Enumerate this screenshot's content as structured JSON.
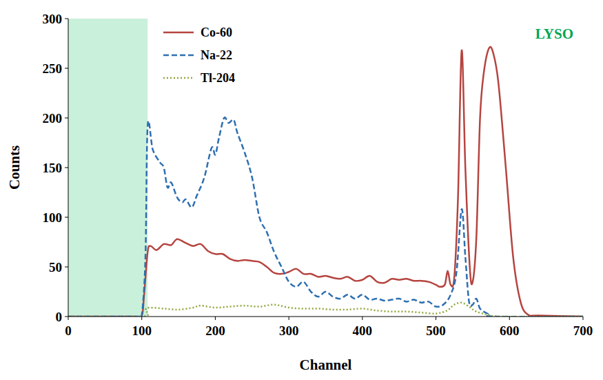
{
  "chart_data": {
    "type": "line",
    "x_label": "Channel",
    "y_label": "Counts",
    "annotations": [
      {
        "text": "LYSO",
        "color": "#00a651"
      }
    ],
    "highlight": {
      "x": [
        0,
        108
      ],
      "color": "#c9f0da"
    },
    "xlim": [
      0,
      700
    ],
    "xticks": [
      0,
      100,
      200,
      300,
      400,
      500,
      600,
      700
    ],
    "ylim": [
      0,
      300
    ],
    "yticks": [
      0,
      50,
      100,
      150,
      200,
      250,
      300
    ],
    "grid": false,
    "legend": "upper left",
    "series": [
      {
        "name": "Co-60",
        "color": "#b5443f",
        "line_style": "solid",
        "x": [
          0,
          50,
          90,
          100,
          103,
          108,
          112,
          120,
          130,
          140,
          148,
          160,
          170,
          180,
          190,
          200,
          210,
          220,
          230,
          240,
          250,
          260,
          270,
          280,
          290,
          300,
          310,
          320,
          330,
          340,
          350,
          360,
          370,
          380,
          390,
          400,
          410,
          420,
          430,
          440,
          450,
          460,
          470,
          480,
          490,
          500,
          505,
          512,
          516,
          520,
          525,
          530,
          535,
          540,
          546,
          550,
          555,
          560,
          565,
          572,
          578,
          585,
          595,
          605,
          615,
          625,
          640,
          700
        ],
        "values": [
          0,
          0,
          0,
          1,
          20,
          65,
          71,
          67,
          73,
          72,
          78,
          74,
          71,
          73,
          66,
          63,
          63,
          58,
          56,
          57,
          56,
          55,
          50,
          44,
          43,
          45,
          48,
          43,
          43,
          40,
          41,
          39,
          38,
          40,
          36,
          37,
          41,
          35,
          34,
          38,
          37,
          38,
          36,
          36,
          35,
          32,
          30,
          32,
          46,
          32,
          40,
          120,
          268,
          150,
          50,
          35,
          80,
          200,
          245,
          270,
          265,
          235,
          150,
          60,
          15,
          2,
          1,
          0
        ]
      },
      {
        "name": "Na-22",
        "color": "#2e6fb0",
        "line_style": "dashed",
        "x": [
          0,
          95,
          100,
          105,
          108,
          115,
          125,
          130,
          135,
          140,
          148,
          155,
          160,
          168,
          175,
          185,
          195,
          200,
          205,
          212,
          218,
          225,
          230,
          240,
          250,
          260,
          270,
          280,
          290,
          300,
          310,
          320,
          330,
          340,
          350,
          360,
          370,
          380,
          390,
          400,
          410,
          420,
          430,
          440,
          450,
          460,
          470,
          480,
          490,
          500,
          510,
          520,
          528,
          535,
          540,
          545,
          550,
          555,
          560,
          570,
          580,
          700
        ],
        "values": [
          0,
          0,
          1,
          60,
          192,
          168,
          155,
          150,
          130,
          135,
          120,
          115,
          118,
          110,
          122,
          140,
          170,
          163,
          180,
          200,
          195,
          198,
          185,
          165,
          140,
          100,
          85,
          65,
          50,
          35,
          30,
          35,
          25,
          20,
          25,
          20,
          18,
          22,
          18,
          22,
          17,
          18,
          16,
          17,
          18,
          15,
          17,
          14,
          15,
          10,
          12,
          22,
          45,
          108,
          60,
          15,
          12,
          18,
          8,
          3,
          0,
          0
        ]
      },
      {
        "name": "Tl-204",
        "color": "#8fa83a",
        "line_style": "dotted",
        "x": [
          0,
          100,
          105,
          110,
          130,
          150,
          170,
          180,
          200,
          220,
          240,
          260,
          280,
          300,
          320,
          340,
          360,
          380,
          400,
          420,
          440,
          460,
          480,
          500,
          515,
          525,
          535,
          545,
          555,
          570,
          590,
          700
        ],
        "values": [
          0,
          0,
          7,
          9,
          8,
          7,
          9,
          11,
          9,
          10,
          11,
          10,
          12,
          9,
          8,
          8,
          7,
          7,
          8,
          6,
          5,
          5,
          4,
          3,
          6,
          12,
          14,
          10,
          5,
          2,
          0,
          0
        ]
      }
    ]
  }
}
